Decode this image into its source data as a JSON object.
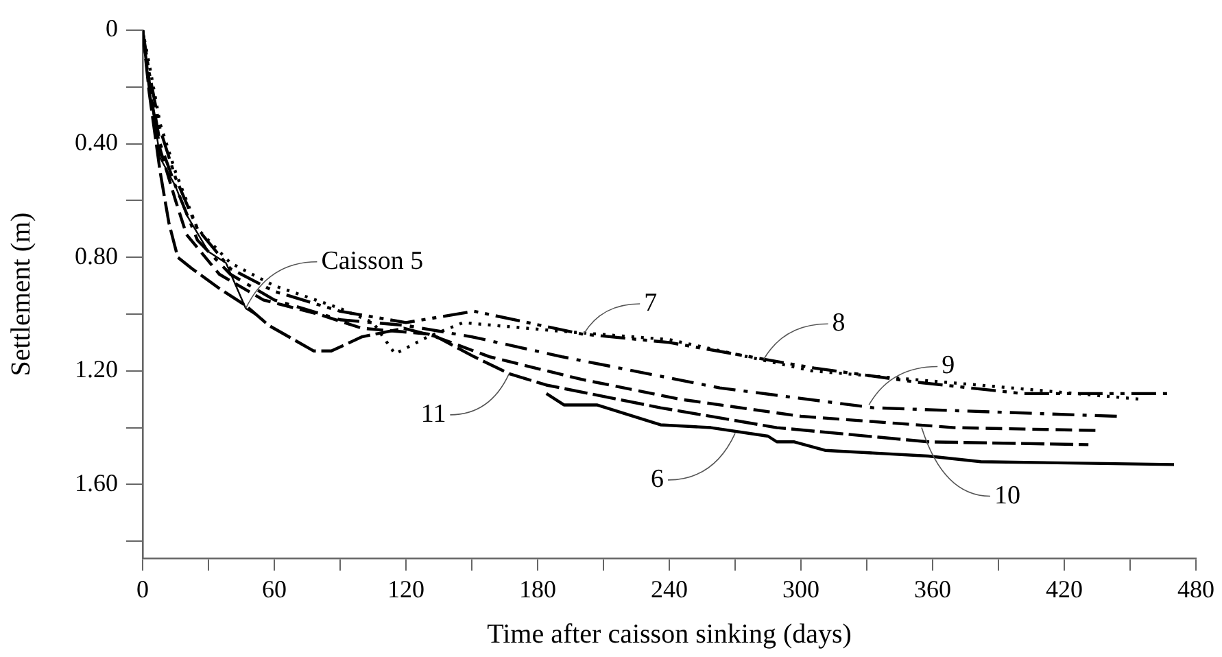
{
  "chart_data": {
    "type": "line",
    "xlabel": "Time after caisson sinking (days)",
    "ylabel": "Settlement (m)",
    "xlim": [
      0,
      480
    ],
    "xticks": [
      0,
      {
        "value": 30,
        "label": null
      },
      60,
      {
        "value": 90,
        "label": null
      },
      120,
      {
        "value": 150,
        "label": null
      },
      180,
      {
        "value": 210,
        "label": null
      },
      240,
      {
        "value": 270,
        "label": null
      },
      300,
      {
        "value": 330,
        "label": null
      },
      360,
      {
        "value": 390,
        "label": null
      },
      420,
      {
        "value": 450,
        "label": null
      },
      480
    ],
    "ylim": [
      1.86,
      0
    ],
    "yticks": [
      0,
      {
        "value": 0.2,
        "label": null
      },
      {
        "value": 0.4,
        "label": "0.40"
      },
      {
        "value": 0.6,
        "label": null
      },
      {
        "value": 0.8,
        "label": "0.80"
      },
      {
        "value": 1.0,
        "label": null
      },
      {
        "value": 1.2,
        "label": "1.20"
      },
      {
        "value": 1.4,
        "label": null
      },
      {
        "value": 1.6,
        "label": "1.60"
      },
      {
        "value": 1.8,
        "label": null
      }
    ],
    "grid": false,
    "legend": false,
    "marker": "none",
    "series": [
      {
        "color": "#000000",
        "line_style": "solid",
        "x": [
          0,
          3,
          8,
          15,
          20,
          30,
          38,
          47,
          55
        ],
        "values": [
          0,
          0.2,
          0.45,
          0.55,
          0.65,
          0.78,
          0.82,
          0.98,
          1.02
        ]
      },
      {
        "color": "#000000",
        "line_style": "solid",
        "x": [
          184,
          192,
          207,
          236,
          259,
          285,
          289,
          297,
          311,
          358,
          382,
          470
        ],
        "values": [
          1.28,
          1.32,
          1.32,
          1.39,
          1.4,
          1.43,
          1.45,
          1.45,
          1.48,
          1.5,
          1.52,
          1.53
        ]
      },
      {
        "color": "#000000",
        "line_style": "dashed",
        "x": [
          0,
          3,
          8,
          15,
          25,
          40,
          60,
          90,
          120,
          151,
          200,
          240,
          306,
          353,
          401,
          467
        ],
        "values": [
          0,
          0.15,
          0.35,
          0.52,
          0.7,
          0.84,
          0.92,
          0.99,
          1.03,
          0.99,
          1.07,
          1.1,
          1.19,
          1.24,
          1.28,
          1.28
        ]
      },
      {
        "color": "#000000",
        "line_style": "dotted",
        "x": [
          0,
          3,
          8,
          15,
          25,
          40,
          60,
          90,
          105,
          115,
          130,
          146,
          190,
          240,
          305,
          381,
          455
        ],
        "values": [
          0,
          0.12,
          0.33,
          0.5,
          0.7,
          0.82,
          0.9,
          0.98,
          1.03,
          1.14,
          1.08,
          1.03,
          1.06,
          1.09,
          1.2,
          1.25,
          1.3
        ]
      },
      {
        "color": "#000000",
        "line_style": "dashed",
        "x": [
          0,
          3,
          8,
          15,
          25,
          40,
          60,
          90,
          120,
          150,
          191,
          263,
          333,
          444
        ],
        "values": [
          0,
          0.18,
          0.4,
          0.55,
          0.74,
          0.86,
          0.95,
          1.02,
          1.04,
          1.08,
          1.15,
          1.26,
          1.33,
          1.36
        ]
      },
      {
        "color": "#000000",
        "line_style": "dashed",
        "x": [
          0,
          3,
          8,
          15,
          20,
          35,
          55,
          80,
          100,
          130,
          158,
          200,
          245,
          300,
          370,
          435
        ],
        "values": [
          0,
          0.2,
          0.42,
          0.6,
          0.72,
          0.86,
          0.95,
          1.0,
          1.05,
          1.07,
          1.15,
          1.23,
          1.3,
          1.36,
          1.4,
          1.41
        ]
      },
      {
        "color": "#000000",
        "line_style": "dashed",
        "x": [
          0,
          3,
          8,
          12,
          16,
          22.5,
          35,
          47,
          57.5,
          78,
          86,
          100,
          119,
          134,
          151,
          167,
          184,
          236,
          289,
          358,
          431
        ],
        "values": [
          0,
          0.22,
          0.5,
          0.68,
          0.8,
          0.84,
          0.91,
          0.97,
          1.04,
          1.13,
          1.13,
          1.08,
          1.05,
          1.08,
          1.15,
          1.21,
          1.25,
          1.33,
          1.4,
          1.45,
          1.46
        ]
      }
    ],
    "annotations": [
      {
        "text": "Caisson 5",
        "x": 47,
        "y": 0.98
      },
      {
        "text": "6",
        "x": 270,
        "y": 1.42
      },
      {
        "text": "7",
        "x": 201,
        "y": 1.07
      },
      {
        "text": "8",
        "x": 283,
        "y": 1.16
      },
      {
        "text": "9",
        "x": 331,
        "y": 1.32
      },
      {
        "text": "10",
        "x": 355,
        "y": 1.4
      },
      {
        "text": "11",
        "x": 167,
        "y": 1.21
      }
    ]
  }
}
